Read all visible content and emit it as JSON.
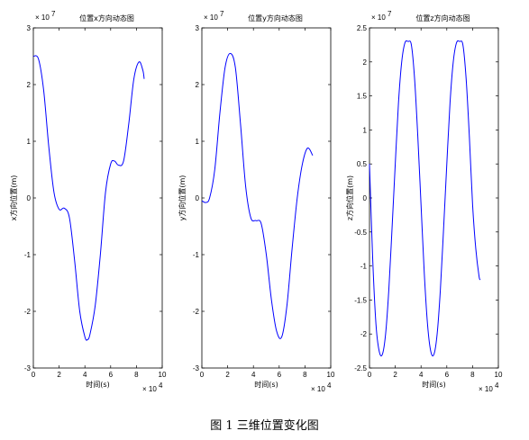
{
  "caption": "图 1 三维位置变化图",
  "colors": {
    "line": "#0000ff",
    "axis": "#000000",
    "background": "#ffffff"
  },
  "chart_data": [
    {
      "type": "line",
      "title": "位置x方向动态图",
      "xlabel": "时间(s)",
      "ylabel": "x方向位置(m)",
      "x_exponent": "4",
      "y_exponent": "7",
      "xlim": [
        0,
        10
      ],
      "ylim": [
        -3,
        3
      ],
      "xticks": [
        0,
        2,
        4,
        6,
        8,
        10
      ],
      "yticks": [
        -3,
        -2,
        -1,
        0,
        1,
        2,
        3
      ],
      "grid": false,
      "series": [
        {
          "x": [
            0,
            0.4,
            0.8,
            1.2,
            1.6,
            2.0,
            2.4,
            2.8,
            3.2,
            3.6,
            4.0,
            4.2,
            4.4,
            4.8,
            5.2,
            5.6,
            6.0,
            6.3,
            6.6,
            7.0,
            7.4,
            7.8,
            8.2,
            8.5,
            8.6
          ],
          "y": [
            2.5,
            2.45,
            1.9,
            0.9,
            0.1,
            -0.2,
            -0.18,
            -0.35,
            -1.1,
            -2.0,
            -2.45,
            -2.5,
            -2.4,
            -1.9,
            -1.0,
            0.1,
            0.6,
            0.65,
            0.58,
            0.65,
            1.3,
            2.1,
            2.4,
            2.25,
            2.1
          ]
        }
      ]
    },
    {
      "type": "line",
      "title": "位置y方向动态图",
      "xlabel": "时间(s)",
      "ylabel": "y方向位置(m)",
      "x_exponent": "4",
      "y_exponent": "7",
      "xlim": [
        0,
        10
      ],
      "ylim": [
        -3,
        3
      ],
      "xticks": [
        0,
        2,
        4,
        6,
        8,
        10
      ],
      "yticks": [
        -3,
        -2,
        -1,
        0,
        1,
        2,
        3
      ],
      "grid": false,
      "series": [
        {
          "x": [
            0,
            0.3,
            0.6,
            1.0,
            1.4,
            1.8,
            2.2,
            2.6,
            3.0,
            3.4,
            3.8,
            4.2,
            4.6,
            5.0,
            5.4,
            5.8,
            6.2,
            6.6,
            7.0,
            7.4,
            7.8,
            8.2,
            8.6
          ],
          "y": [
            -0.05,
            -0.08,
            0.0,
            0.5,
            1.5,
            2.3,
            2.55,
            2.3,
            1.3,
            0.2,
            -0.35,
            -0.4,
            -0.45,
            -1.0,
            -1.8,
            -2.35,
            -2.45,
            -1.9,
            -0.9,
            0.0,
            0.6,
            0.88,
            0.75
          ]
        }
      ]
    },
    {
      "type": "line",
      "title": "位置z方向动态图",
      "xlabel": "时间(s)",
      "ylabel": "z方向位置(m)",
      "x_exponent": "4",
      "y_exponent": "7",
      "xlim": [
        0,
        10
      ],
      "ylim": [
        -2.5,
        2.5
      ],
      "xticks": [
        0,
        2,
        4,
        6,
        8,
        10
      ],
      "yticks": [
        -2.5,
        -2,
        -1.5,
        -1,
        -0.5,
        0,
        0.5,
        1,
        1.5,
        2,
        2.5
      ],
      "grid": false,
      "series": [
        {
          "x": [
            0,
            0.25,
            0.5,
            0.75,
            1.0,
            1.25,
            1.5,
            1.75,
            2.0,
            2.25,
            2.5,
            2.75,
            3.0,
            3.25,
            3.5,
            3.75,
            4.0,
            4.25,
            4.5,
            4.75,
            5.0,
            5.25,
            5.5,
            5.75,
            6.0,
            6.25,
            6.5,
            6.75,
            7.0,
            7.25,
            7.5,
            7.75,
            8.0,
            8.25,
            8.5,
            8.6
          ],
          "y": [
            0.5,
            -0.9,
            -1.85,
            -2.25,
            -2.3,
            -2.0,
            -1.35,
            -0.45,
            0.5,
            1.4,
            2.0,
            2.28,
            2.3,
            2.25,
            1.75,
            0.9,
            -0.1,
            -1.1,
            -1.85,
            -2.25,
            -2.3,
            -2.0,
            -1.35,
            -0.45,
            0.5,
            1.4,
            2.0,
            2.28,
            2.3,
            2.25,
            1.75,
            0.9,
            -0.1,
            -0.75,
            -1.15,
            -1.2
          ]
        }
      ]
    }
  ]
}
